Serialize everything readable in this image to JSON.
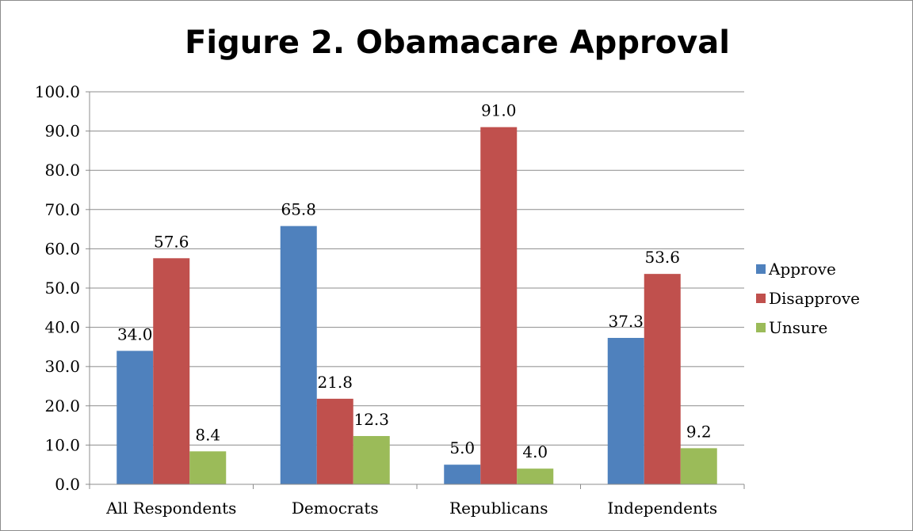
{
  "chart_data": {
    "type": "bar",
    "title": "Figure 2. Obamacare Approval",
    "categories": [
      "All Respondents",
      "Democrats",
      "Republicans",
      "Independents"
    ],
    "series": [
      {
        "name": "Approve",
        "color": "#4F81BD",
        "values": [
          34.0,
          65.8,
          5.0,
          37.3
        ]
      },
      {
        "name": "Disapprove",
        "color": "#C0504D",
        "values": [
          57.6,
          21.8,
          91.0,
          53.6
        ]
      },
      {
        "name": "Unsure",
        "color": "#9BBB59",
        "values": [
          8.4,
          12.3,
          4.0,
          9.2
        ]
      }
    ],
    "ylim": [
      0,
      100
    ],
    "yticks": [
      "0.0",
      "10.0",
      "20.0",
      "30.0",
      "40.0",
      "50.0",
      "60.0",
      "70.0",
      "80.0",
      "90.0",
      "100.0"
    ],
    "grid": true,
    "legend_position": "right",
    "value_format": "0.0"
  }
}
